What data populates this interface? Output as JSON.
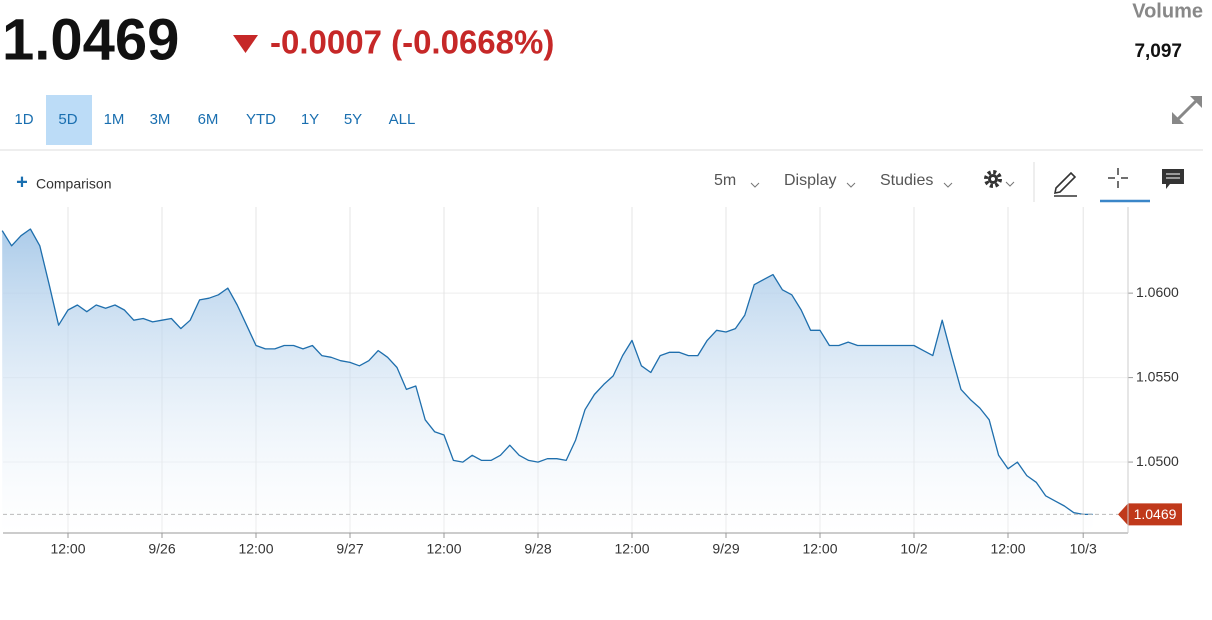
{
  "header": {
    "price": "1.0469",
    "change": "-0.0007 (-0.0668%)",
    "volume_label": "Volume",
    "volume": "7,097"
  },
  "ranges": [
    {
      "label": "1D"
    },
    {
      "label": "5D",
      "selected": true
    },
    {
      "label": "1M"
    },
    {
      "label": "3M"
    },
    {
      "label": "6M"
    },
    {
      "label": "YTD"
    },
    {
      "label": "1Y"
    },
    {
      "label": "5Y"
    },
    {
      "label": "ALL"
    }
  ],
  "toolbar": {
    "comparison": "Comparison",
    "interval": "5m",
    "display": "Display",
    "studies": "Studies"
  },
  "chart_data": {
    "type": "line",
    "color": "#1f6fad",
    "grid": true,
    "price_tag_color": "#c0391b",
    "categories": [
      null,
      null,
      null,
      null,
      null,
      null,
      null,
      "12:00",
      null,
      null,
      null,
      null,
      null,
      null,
      null,
      null,
      null,
      "9/26",
      null,
      null,
      null,
      null,
      null,
      null,
      null,
      null,
      null,
      "12:00",
      null,
      null,
      null,
      null,
      null,
      null,
      null,
      null,
      null,
      "9/27",
      null,
      null,
      null,
      null,
      null,
      null,
      null,
      null,
      null,
      "12:00",
      null,
      null,
      null,
      null,
      null,
      null,
      null,
      null,
      null,
      "9/28",
      null,
      null,
      null,
      null,
      null,
      null,
      null,
      null,
      null,
      "12:00",
      null,
      null,
      null,
      null,
      null,
      null,
      null,
      null,
      null,
      "9/29",
      null,
      null,
      null,
      null,
      null,
      null,
      null,
      null,
      null,
      "12:00",
      null,
      null,
      null,
      null,
      null,
      null,
      null,
      null,
      null,
      "10/2",
      null,
      null,
      null,
      null,
      null,
      null,
      null,
      null,
      null,
      "12:00",
      null,
      null,
      null,
      null,
      null,
      null,
      null,
      "10/3",
      null
    ],
    "values": [
      1.0637,
      1.0628,
      1.0634,
      1.0638,
      1.0628,
      1.0605,
      1.0581,
      1.059,
      1.0593,
      1.0589,
      1.0593,
      1.0591,
      1.0593,
      1.059,
      1.0584,
      1.0585,
      1.0583,
      1.0584,
      1.0585,
      1.0579,
      1.0584,
      1.0596,
      1.0597,
      1.0599,
      1.0603,
      1.0593,
      1.0581,
      1.0569,
      1.0567,
      1.0567,
      1.0569,
      1.0569,
      1.0567,
      1.0569,
      1.0563,
      1.0562,
      1.056,
      1.0559,
      1.0557,
      1.056,
      1.0566,
      1.0562,
      1.0556,
      1.0543,
      1.0545,
      1.0525,
      1.0518,
      1.0516,
      1.0501,
      1.05,
      1.0504,
      1.0501,
      1.0501,
      1.0504,
      1.051,
      1.0504,
      1.0501,
      1.05,
      1.0502,
      1.0502,
      1.0501,
      1.0513,
      1.0531,
      1.054,
      1.0546,
      1.0551,
      1.0563,
      1.0572,
      1.0557,
      1.0553,
      1.0563,
      1.0565,
      1.0565,
      1.0563,
      1.0563,
      1.0572,
      1.0578,
      1.0577,
      1.0579,
      1.0587,
      1.0605,
      1.0608,
      1.0611,
      1.0602,
      1.0599,
      1.059,
      1.0578,
      1.0578,
      1.0569,
      1.0569,
      1.0571,
      1.0569,
      1.0569,
      1.0569,
      1.0569,
      1.0569,
      1.0569,
      1.0569,
      1.0566,
      1.0563,
      1.0584,
      1.0563,
      1.0543,
      1.0537,
      1.0532,
      1.0525,
      1.0504,
      1.0496,
      1.05,
      1.0492,
      1.0488,
      1.048,
      1.0477,
      1.0474,
      1.047,
      1.0469,
      1.0469
    ],
    "ylim": [
      1.0458,
      1.0651
    ],
    "yticks": [
      {
        "value": 1.05,
        "label": "1.0500"
      },
      {
        "value": 1.055,
        "label": "1.0550"
      },
      {
        "value": 1.06,
        "label": "1.0600"
      }
    ]
  }
}
